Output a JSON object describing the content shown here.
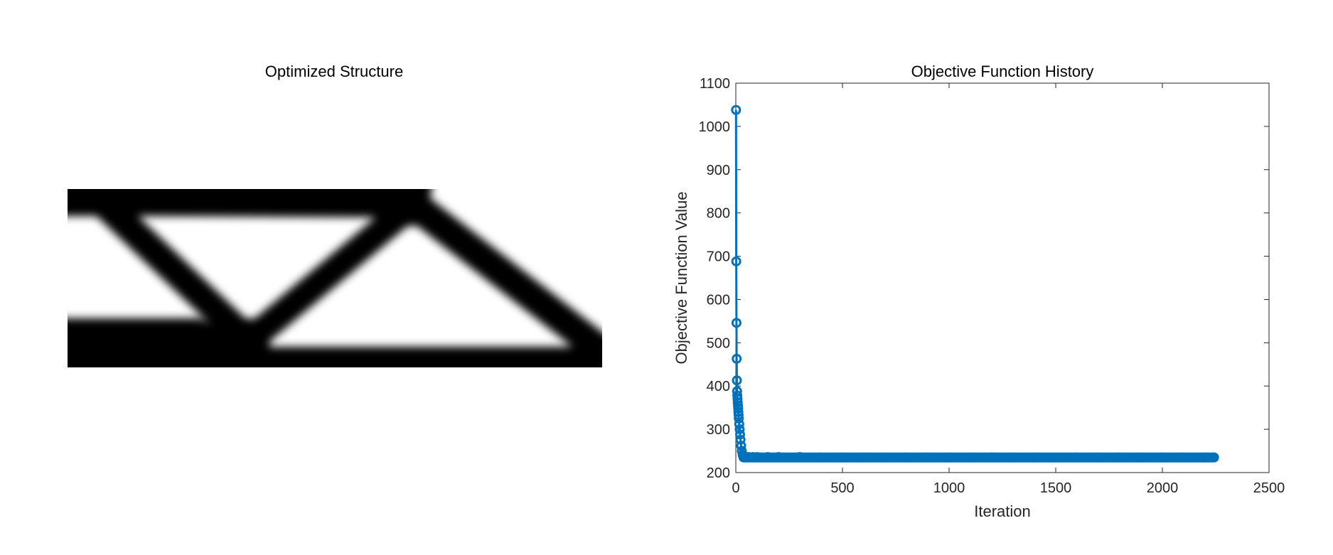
{
  "chart_data": [
    {
      "type": "heatmap",
      "title": "Optimized Structure",
      "colormap": "gray-inverted",
      "axes_visible": false
    },
    {
      "type": "line",
      "title": "Objective Function History",
      "xlabel": "Iteration",
      "ylabel": "Objective Function Value",
      "xlim": [
        0,
        2500
      ],
      "ylim": [
        200,
        1100
      ],
      "xticks": [
        0,
        500,
        1000,
        1500,
        2000,
        2500
      ],
      "yticks": [
        200,
        300,
        400,
        500,
        600,
        700,
        800,
        900,
        1000,
        1100
      ],
      "grid": false,
      "legend": "none",
      "marker": "circle",
      "line_color": "#0072BD",
      "series": [
        {
          "x": [
            1,
            2,
            3,
            4,
            5,
            6,
            7,
            8,
            9,
            10,
            11,
            12,
            13,
            14,
            16,
            18,
            20,
            22,
            25,
            28,
            32,
            36,
            40,
            45,
            50,
            60,
            80,
            100,
            150,
            200,
            300,
            400,
            500,
            600,
            700,
            800,
            900,
            1000,
            1100,
            1200,
            1300,
            1400,
            1500,
            1600,
            1700,
            1800,
            1900,
            2000,
            2100,
            2200,
            2242
          ],
          "values": [
            1038,
            688,
            546,
            463,
            413,
            388,
            378,
            370,
            362,
            355,
            348,
            340,
            333,
            325,
            312,
            300,
            288,
            276,
            262,
            250,
            241,
            238,
            237,
            236,
            236,
            236,
            236,
            236,
            236,
            236,
            236,
            235,
            235,
            235,
            235,
            235,
            235,
            235,
            235,
            235,
            235,
            235,
            235,
            235,
            235,
            235,
            235,
            235,
            235,
            235,
            235
          ]
        }
      ]
    }
  ]
}
